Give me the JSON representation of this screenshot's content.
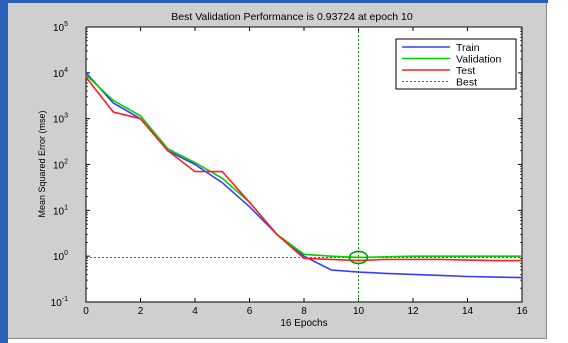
{
  "chart_data": {
    "type": "line",
    "title": "Best Validation Performance is 0.93724 at epoch 10",
    "xlabel": "16 Epochs",
    "ylabel": "Mean Squared Error  (mse)",
    "xlim": [
      0,
      16
    ],
    "ylim": [
      0.1,
      100000
    ],
    "yscale": "log",
    "grid": false,
    "legend_position": "top-right",
    "xticks": [
      0,
      2,
      4,
      6,
      8,
      10,
      12,
      14,
      16
    ],
    "yticks": [
      {
        "value": 0.1,
        "base": "10",
        "exp": "-1"
      },
      {
        "value": 1,
        "base": "10",
        "exp": "0"
      },
      {
        "value": 10,
        "base": "10",
        "exp": "1"
      },
      {
        "value": 100,
        "base": "10",
        "exp": "2"
      },
      {
        "value": 1000,
        "base": "10",
        "exp": "3"
      },
      {
        "value": 10000,
        "base": "10",
        "exp": "4"
      },
      {
        "value": 100000,
        "base": "10",
        "exp": "5"
      }
    ],
    "series": [
      {
        "name": "Train",
        "color": "#3b3bff",
        "style": "solid",
        "x": [
          0,
          1,
          2,
          3,
          4,
          5,
          6,
          7,
          8,
          9,
          10,
          11,
          12,
          13,
          14,
          15,
          16
        ],
        "y": [
          10000,
          2200,
          1000,
          200,
          100,
          40,
          12,
          3,
          1,
          0.5,
          0.45,
          0.42,
          0.4,
          0.38,
          0.36,
          0.35,
          0.34
        ]
      },
      {
        "name": "Validation",
        "color": "#00d000",
        "style": "solid",
        "x": [
          0,
          1,
          2,
          3,
          4,
          5,
          6,
          7,
          8,
          9,
          10,
          11,
          12,
          13,
          14,
          15,
          16
        ],
        "y": [
          9000,
          2500,
          1150,
          220,
          110,
          50,
          15,
          3,
          1.1,
          1,
          0.94,
          0.97,
          1,
          1,
          1,
          1,
          1
        ]
      },
      {
        "name": "Test",
        "color": "#ff2020",
        "style": "solid",
        "x": [
          0,
          1,
          2,
          3,
          4,
          5,
          6,
          7,
          8,
          9,
          10,
          11,
          12,
          13,
          14,
          15,
          16
        ],
        "y": [
          8000,
          1400,
          1000,
          200,
          70,
          70,
          15,
          3,
          0.9,
          0.85,
          0.8,
          0.85,
          0.85,
          0.85,
          0.82,
          0.8,
          0.8
        ]
      }
    ],
    "best": {
      "name": "Best",
      "color": "#00a000",
      "style": "dotted",
      "x": 10,
      "y": 0.93724
    }
  }
}
